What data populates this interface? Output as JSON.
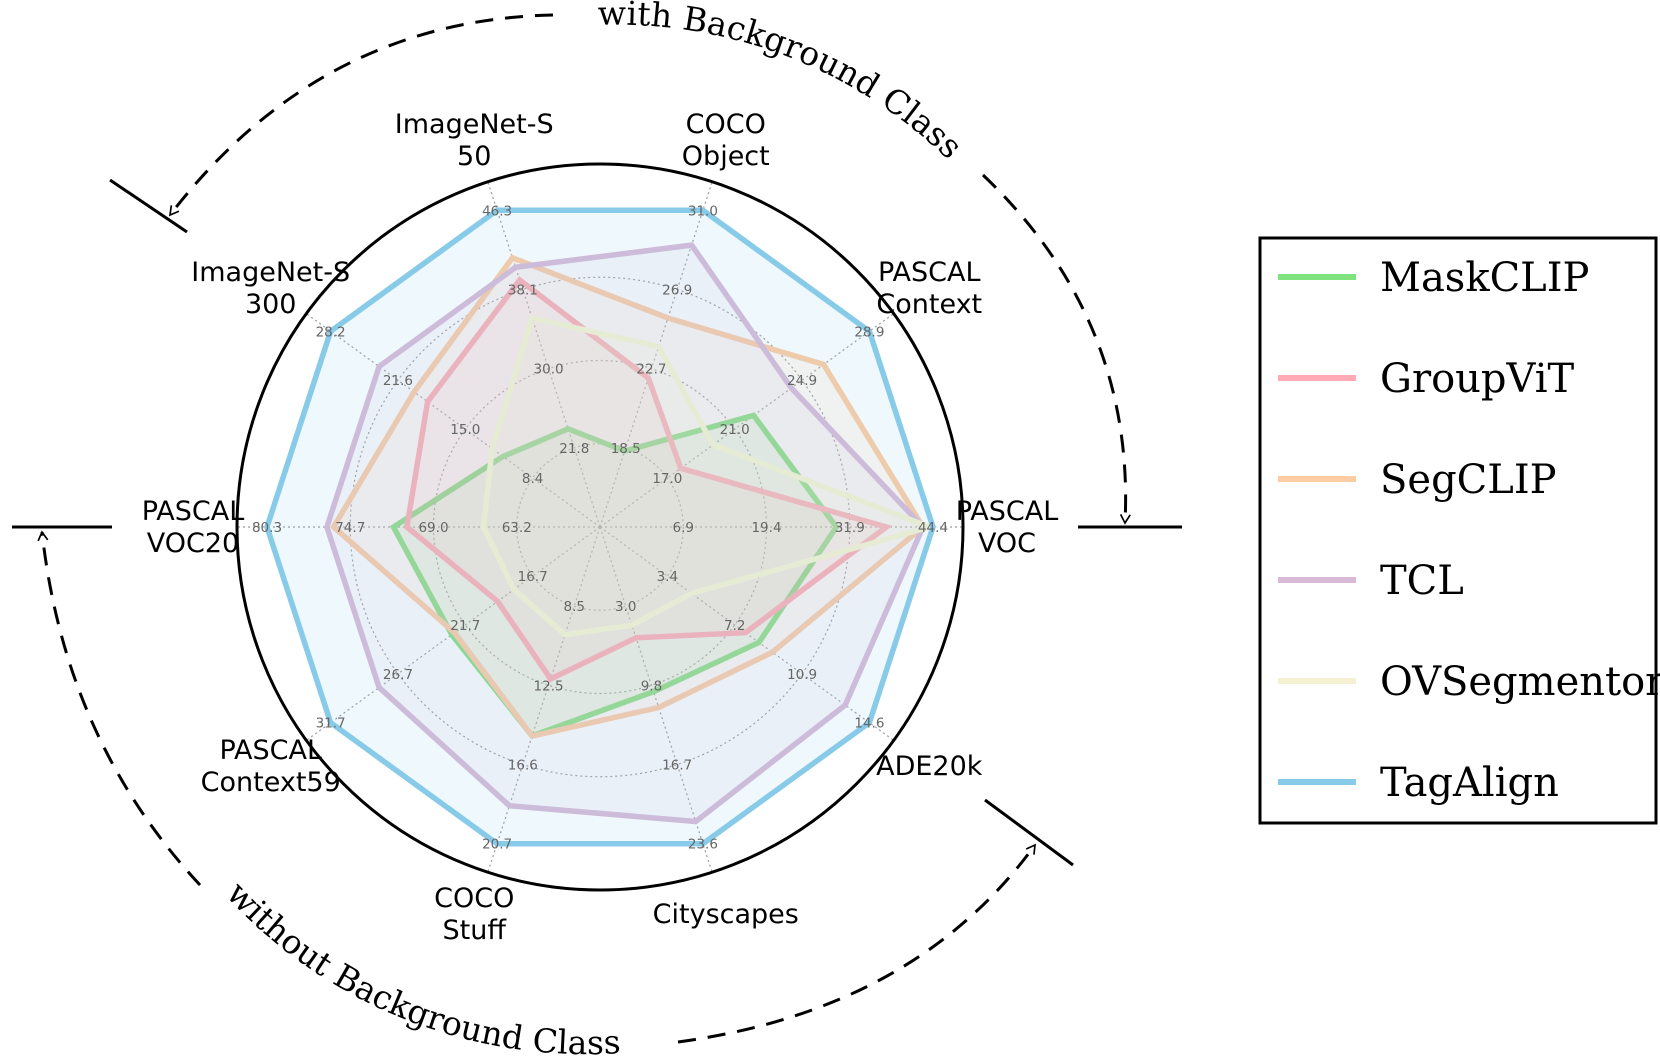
{
  "chart_data": {
    "type": "radar",
    "axes": [
      {
        "name": "PASCAL\nVOC",
        "ticks": [
          "6.9",
          "19.4",
          "31.9",
          "44.4"
        ]
      },
      {
        "name": "PASCAL\nContext",
        "ticks": [
          "17.0",
          "21.0",
          "24.9",
          "28.9"
        ]
      },
      {
        "name": "COCO\nObject",
        "ticks": [
          "18.5",
          "22.7",
          "26.9",
          "31.0"
        ]
      },
      {
        "name": "ImageNet-S\n50",
        "ticks": [
          "21.8",
          "30.0",
          "38.1",
          "46.3"
        ]
      },
      {
        "name": "ImageNet-S\n300",
        "ticks": [
          "8.4",
          "15.0",
          "21.6",
          "28.2"
        ]
      },
      {
        "name": "PASCAL\nVOC20",
        "ticks": [
          "63.2",
          "69.0",
          "74.7",
          "80.3"
        ]
      },
      {
        "name": "PASCAL\nContext59",
        "ticks": [
          "16.7",
          "21.7",
          "26.7",
          "31.7"
        ]
      },
      {
        "name": "COCO\nStuff",
        "ticks": [
          "8.5",
          "12.5",
          "16.6",
          "20.7"
        ]
      },
      {
        "name": "Cityscapes",
        "ticks": [
          "3.0",
          "9.8",
          "16.7",
          "23.6"
        ]
      },
      {
        "name": "ADE20k",
        "ticks": [
          "3.4",
          "7.2",
          "10.9",
          "14.6"
        ]
      }
    ],
    "series": [
      {
        "name": "MaskCLIP",
        "color": "#7ee27e",
        "values": [
          0.71,
          0.57,
          0.24,
          0.31,
          0.36,
          0.62,
          0.55,
          0.66,
          0.52,
          0.59
        ]
      },
      {
        "name": "GroupViT",
        "color": "#ffaab5",
        "values": [
          0.86,
          0.3,
          0.47,
          0.78,
          0.64,
          0.58,
          0.38,
          0.48,
          0.35,
          0.54
        ]
      },
      {
        "name": "SegCLIP",
        "color": "#fdcca2",
        "values": [
          0.97,
          0.83,
          0.66,
          0.85,
          0.69,
          0.8,
          0.54,
          0.66,
          0.57,
          0.64
        ]
      },
      {
        "name": "TCL",
        "color": "#d8b9d8",
        "values": [
          0.97,
          0.71,
          0.89,
          0.82,
          0.82,
          0.82,
          0.82,
          0.88,
          0.93,
          0.91
        ]
      },
      {
        "name": "OVSegmentor",
        "color": "#f5f0d2",
        "values": [
          0.99,
          0.42,
          0.57,
          0.66,
          0.4,
          0.35,
          0.32,
          0.34,
          0.31,
          0.34
        ]
      },
      {
        "name": "TagAlign",
        "color": "#87cbe8",
        "values": [
          1.0,
          1.0,
          1.0,
          1.0,
          1.0,
          1.0,
          1.0,
          1.0,
          1.0,
          1.0
        ]
      }
    ],
    "annotations": [
      "with Background Class",
      "without Background Class"
    ],
    "legend": "right",
    "grid": true
  }
}
